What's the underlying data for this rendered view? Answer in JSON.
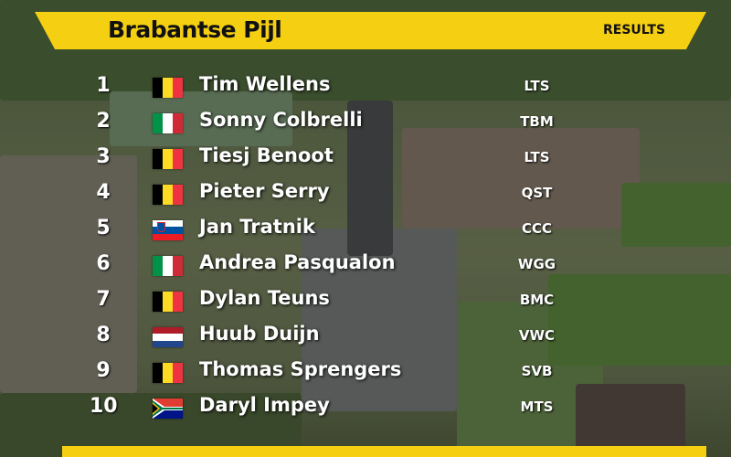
{
  "race": {
    "title": "Brabantse Pijl",
    "results_label": "RESULTS"
  },
  "riders": [
    {
      "pos": "1",
      "name": "Tim Wellens",
      "team": "LTS",
      "flag": "belgium-flag"
    },
    {
      "pos": "2",
      "name": "Sonny Colbrelli",
      "team": "TBM",
      "flag": "italy-flag"
    },
    {
      "pos": "3",
      "name": "Tiesj Benoot",
      "team": "LTS",
      "flag": "belgium-flag"
    },
    {
      "pos": "4",
      "name": "Pieter Serry",
      "team": "QST",
      "flag": "belgium-flag"
    },
    {
      "pos": "5",
      "name": "Jan Tratnik",
      "team": "CCC",
      "flag": "slovenia-flag"
    },
    {
      "pos": "6",
      "name": "Andrea Pasqualon",
      "team": "WGG",
      "flag": "italy-flag"
    },
    {
      "pos": "7",
      "name": "Dylan Teuns",
      "team": "BMC",
      "flag": "belgium-flag"
    },
    {
      "pos": "8",
      "name": "Huub Duijn",
      "team": "VWC",
      "flag": "netherlands-flag"
    },
    {
      "pos": "9",
      "name": "Thomas Sprengers",
      "team": "SVB",
      "flag": "belgium-flag"
    },
    {
      "pos": "10",
      "name": "Daryl Impey",
      "team": "MTS",
      "flag": "south-africa-flag"
    }
  ],
  "colors": {
    "banner": "#f5cf11",
    "text": "#ffffff"
  }
}
